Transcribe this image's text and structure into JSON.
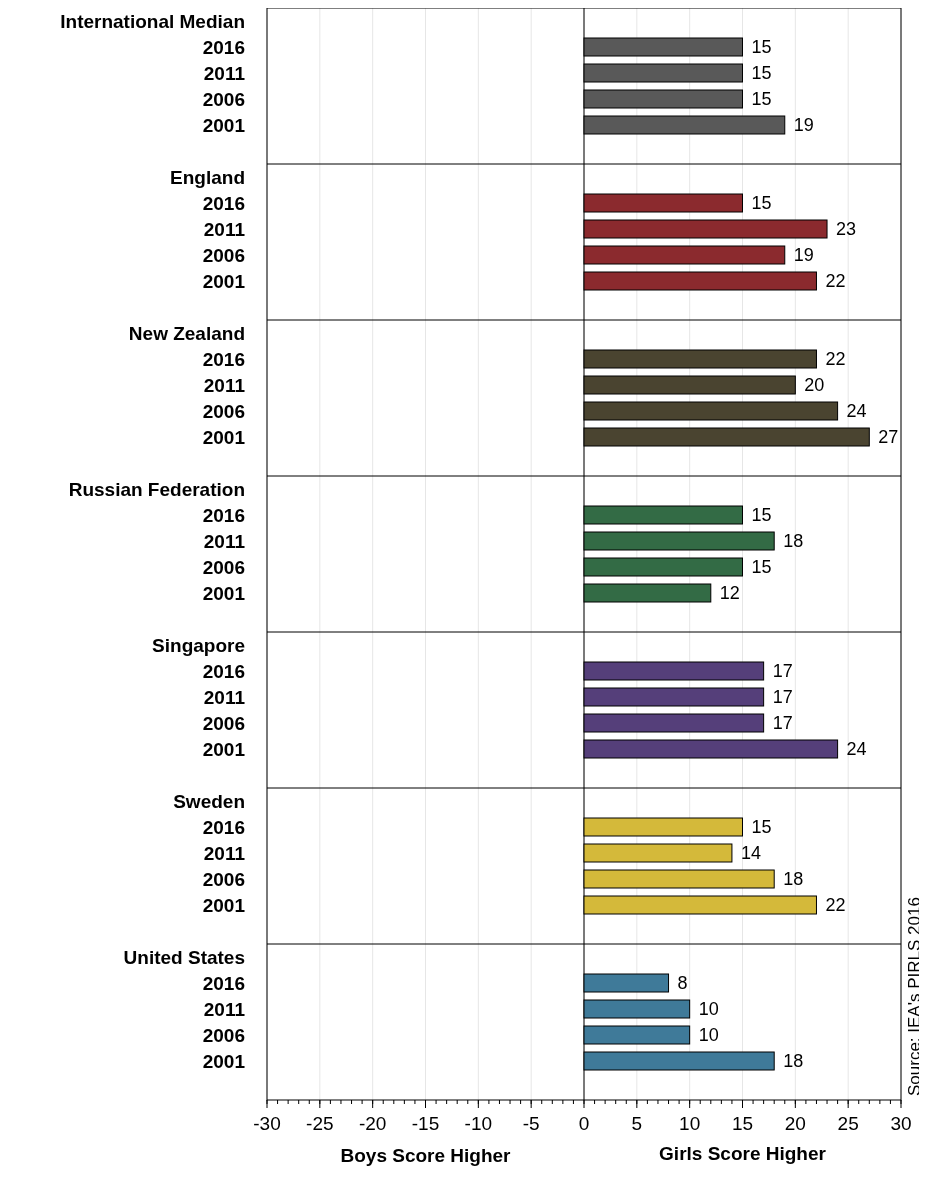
{
  "chart_data": {
    "type": "bar",
    "orientation": "horizontal",
    "categories": [
      "International Median",
      "2016",
      "2011",
      "2006",
      "2001",
      null,
      "England",
      "2016",
      "2011",
      "2006",
      "2001",
      null,
      "New Zealand",
      "2016",
      "2011",
      "2006",
      "2001",
      null,
      "Russian Federation",
      "2016",
      "2011",
      "2006",
      "2001",
      null,
      "Singapore",
      "2016",
      "2011",
      "2006",
      "2001",
      null,
      "Sweden",
      "2016",
      "2011",
      "2006",
      "2001",
      null,
      "United States",
      "2016",
      "2011",
      "2006",
      "2001",
      null
    ],
    "values": [
      null,
      15,
      15,
      15,
      19,
      null,
      null,
      15,
      23,
      19,
      22,
      null,
      null,
      22,
      20,
      24,
      27,
      null,
      null,
      15,
      18,
      15,
      12,
      null,
      null,
      17,
      17,
      17,
      24,
      null,
      null,
      15,
      14,
      18,
      22,
      null,
      null,
      8,
      10,
      10,
      18,
      null
    ],
    "colors": [
      null,
      "#595959",
      "#595959",
      "#595959",
      "#595959",
      null,
      null,
      "#8b2a2e",
      "#8b2a2e",
      "#8b2a2e",
      "#8b2a2e",
      null,
      null,
      "#4a4430",
      "#4a4430",
      "#4a4430",
      "#4a4430",
      null,
      null,
      "#336b45",
      "#336b45",
      "#336b45",
      "#336b45",
      null,
      null,
      "#553f7a",
      "#553f7a",
      "#553f7a",
      "#553f7a",
      null,
      null,
      "#d4b93a",
      "#d4b93a",
      "#d4b93a",
      "#d4b93a",
      null,
      null,
      "#3f7a99",
      "#3f7a99",
      "#3f7a99",
      "#3f7a99",
      null
    ],
    "xlim": [
      -30,
      30
    ],
    "xticks": [
      -30,
      -25,
      -20,
      -15,
      -10,
      -5,
      0,
      5,
      10,
      15,
      20,
      25,
      30
    ],
    "grid": "x",
    "data_labels": true,
    "annotations": [
      "Boys Score Higher",
      "Girls Score Higher",
      "Source: IEA's PIRLS 2016"
    ]
  }
}
